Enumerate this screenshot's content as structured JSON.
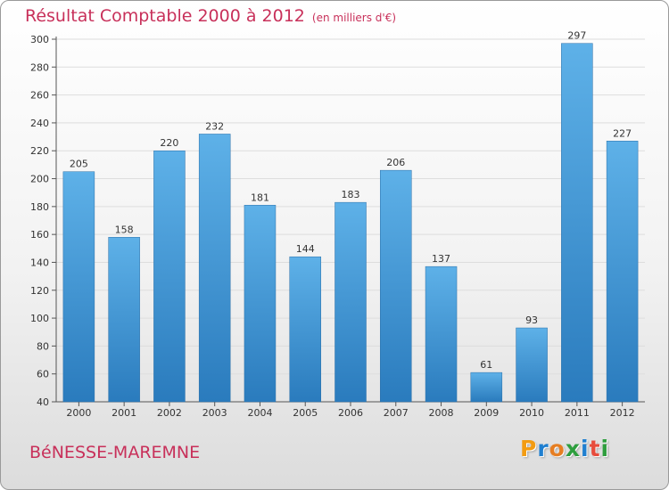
{
  "title": "Résultat Comptable 2000 à 2012",
  "unit": "(en milliers d'€)",
  "commune": "BéNESSE-MAREMNE",
  "logo": [
    "P",
    "r",
    "o",
    "x",
    "i",
    "t",
    "i"
  ],
  "colors": {
    "bar_light": "#5eb1e8",
    "bar_dark": "#2a7bbd",
    "title": "#c8305a",
    "grid": "#dddddd",
    "logo": [
      "#f39c12",
      "#1f7fd0",
      "#e67e22",
      "#2e9e3e",
      "#1f7fd0",
      "#e74c3c",
      "#2e9e3e"
    ]
  },
  "chart_data": {
    "type": "bar",
    "title": "Résultat Comptable 2000 à 2012",
    "ylabel": "en milliers d'€",
    "xlabel": "",
    "categories": [
      "2000",
      "2001",
      "2002",
      "2003",
      "2004",
      "2005",
      "2006",
      "2007",
      "2008",
      "2009",
      "2010",
      "2011",
      "2012"
    ],
    "values": [
      205,
      158,
      220,
      232,
      181,
      144,
      183,
      206,
      137,
      61,
      93,
      297,
      227
    ],
    "ylim": [
      40,
      300
    ],
    "yticks": [
      40,
      60,
      80,
      100,
      120,
      140,
      160,
      180,
      200,
      220,
      240,
      260,
      280,
      300
    ],
    "grid": true
  }
}
